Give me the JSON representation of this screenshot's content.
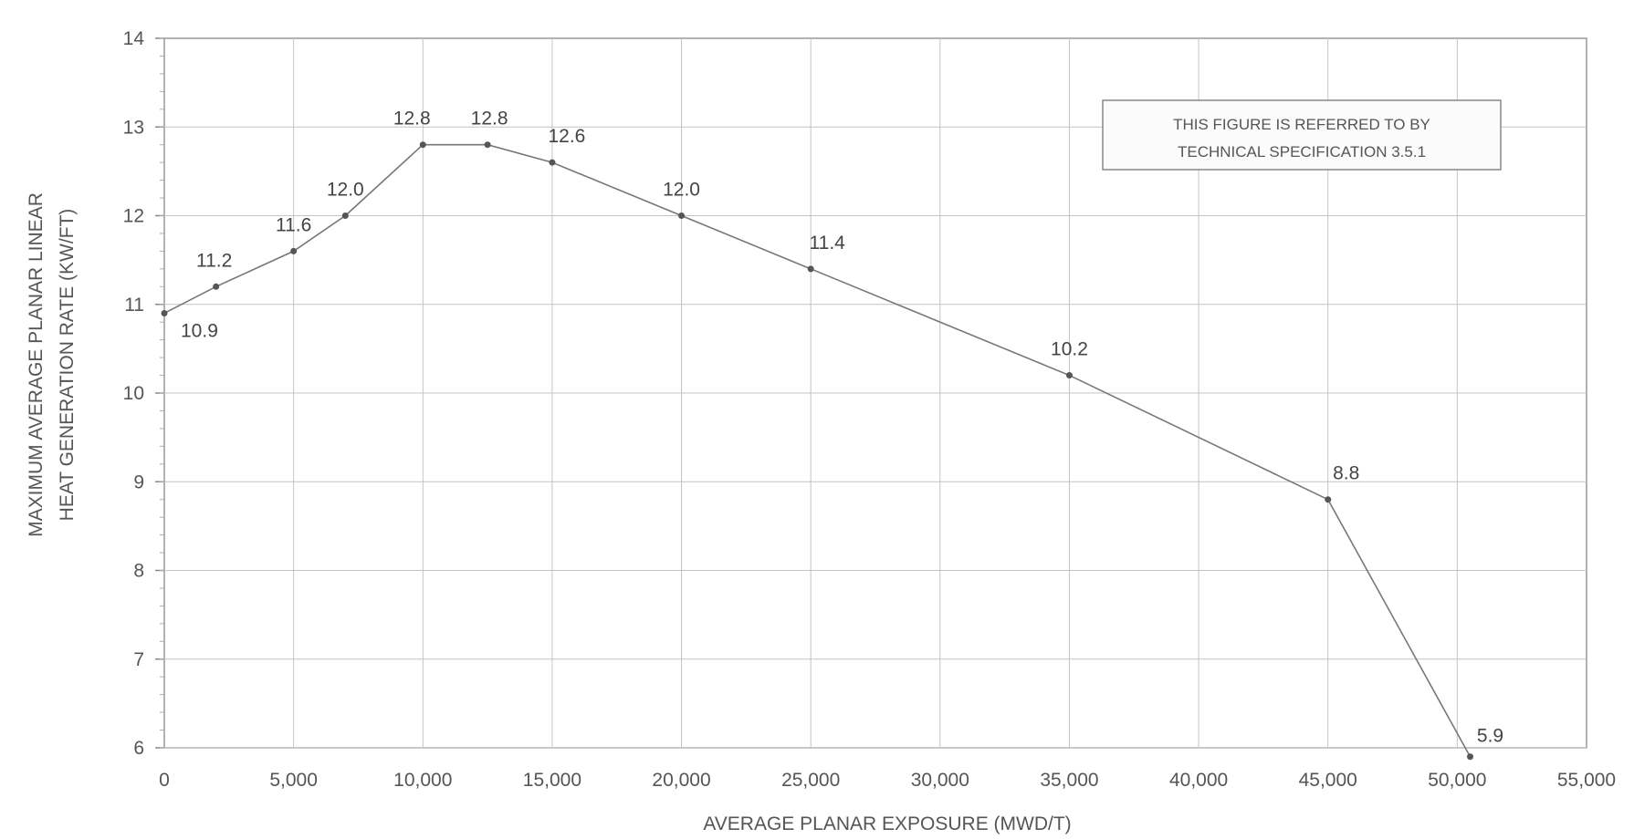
{
  "chart_data": {
    "type": "line",
    "title": "",
    "xlabel": "AVERAGE PLANAR EXPOSURE (MWD/T)",
    "ylabel_lines": [
      "MAXIMUM AVERAGE PLANAR LINEAR",
      "HEAT GENERATION RATE (KW/FT)"
    ],
    "xlim": [
      0,
      55000
    ],
    "ylim": [
      6,
      14
    ],
    "x_ticks": [
      0,
      5000,
      10000,
      15000,
      20000,
      25000,
      30000,
      35000,
      40000,
      45000,
      50000,
      55000
    ],
    "x_tick_labels": [
      "0",
      "5,000",
      "10,000",
      "15,000",
      "20,000",
      "25,000",
      "30,000",
      "35,000",
      "40,000",
      "45,000",
      "50,000",
      "55,000"
    ],
    "y_ticks": [
      6,
      7,
      8,
      9,
      10,
      11,
      12,
      13,
      14
    ],
    "y_tick_labels": [
      "6",
      "7",
      "8",
      "9",
      "10",
      "11",
      "12",
      "13",
      "14"
    ],
    "grid": true,
    "series": [
      {
        "x": [
          0,
          2000,
          5000,
          7000,
          10000,
          12500,
          15000,
          20000,
          25000,
          35000,
          45000,
          50500
        ],
        "y": [
          10.9,
          11.2,
          11.6,
          12.0,
          12.8,
          12.8,
          12.6,
          12.0,
          11.4,
          10.2,
          8.8,
          5.9
        ]
      }
    ],
    "point_labels": [
      "10.9",
      "11.2",
      "11.6",
      "12.0",
      "12.8",
      "12.8",
      "12.6",
      "12.0",
      "11.4",
      "10.2",
      "8.8",
      "5.9"
    ],
    "annotation": {
      "lines": [
        "THIS FIGURE IS REFERRED TO BY",
        "TECHNICAL SPECIFICATION 3.5.1"
      ],
      "placement": "top-right"
    }
  }
}
